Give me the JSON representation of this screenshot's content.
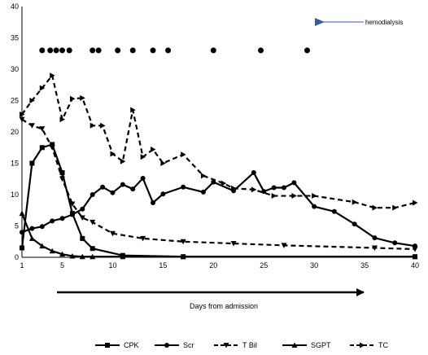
{
  "chart_data": {
    "type": "line",
    "xlabel": "Days from admission",
    "xlim": [
      1,
      40
    ],
    "ylim": [
      0,
      40
    ],
    "x_ticks": [
      1,
      5,
      10,
      15,
      20,
      25,
      30,
      35,
      40
    ],
    "y_ticks": [
      0,
      5,
      10,
      15,
      20,
      25,
      30,
      35,
      40
    ],
    "grid": false,
    "legend_position": "bottom",
    "hemodialysis": {
      "label": "hemodialysis",
      "y": 33,
      "days": [
        3,
        3.8,
        4.4,
        5,
        5.7,
        8,
        8.6,
        10.5,
        12,
        14,
        15.5,
        20,
        24.7,
        29.3
      ]
    },
    "series": [
      {
        "name": "CPK",
        "marker": "square",
        "style": "solid",
        "x": [
          1,
          2,
          3,
          4,
          5,
          6,
          7,
          8,
          11,
          17,
          40
        ],
        "y": [
          1.5,
          15,
          17.5,
          18,
          13.5,
          7,
          3,
          1.4,
          0.3,
          0.1,
          0.1
        ]
      },
      {
        "name": "Scr",
        "marker": "circle",
        "style": "solid",
        "x": [
          1,
          2,
          3,
          4,
          5,
          6,
          7,
          8,
          9,
          10,
          11,
          12,
          13,
          14,
          15,
          17,
          19,
          20,
          22,
          24,
          25,
          26,
          27,
          28,
          30,
          32,
          34,
          36,
          38,
          40
        ],
        "y": [
          4,
          4.6,
          4.9,
          5.8,
          6.2,
          6.8,
          7.7,
          10,
          11.2,
          10.3,
          11.6,
          10.9,
          12.6,
          8.7,
          10.1,
          11.2,
          10.4,
          12,
          10.6,
          13.5,
          10.5,
          11.1,
          11.1,
          11.9,
          8.1,
          7.3,
          5.3,
          3.1,
          2.3,
          1.8
        ]
      },
      {
        "name": "T Bil",
        "marker": "triangle-down",
        "style": "dashed",
        "x": [
          1,
          2,
          3,
          4,
          5,
          6,
          7,
          8,
          10,
          13,
          17,
          22,
          27,
          36,
          40
        ],
        "y": [
          22,
          21,
          20.5,
          17.5,
          12.5,
          8.5,
          6.3,
          5.6,
          3.8,
          3,
          2.5,
          2.2,
          1.9,
          1.5,
          1.3
        ]
      },
      {
        "name": "SGPT",
        "marker": "triangle-up",
        "style": "solid",
        "x": [
          1,
          2,
          3,
          4,
          5,
          6,
          7,
          8,
          11,
          17,
          40
        ],
        "y": [
          7,
          3,
          1.8,
          1,
          0.5,
          0.2,
          0.1,
          0.1,
          0.1,
          0.1,
          0.1
        ]
      },
      {
        "name": "TC",
        "marker": "triangle-right",
        "style": "dashed",
        "x": [
          1,
          2,
          3,
          4,
          5,
          6,
          7,
          8,
          9,
          10,
          11,
          12,
          13,
          14,
          15,
          17,
          19,
          21,
          22,
          24,
          26,
          28,
          30,
          34,
          36,
          38,
          40
        ],
        "y": [
          22.8,
          25,
          27,
          29,
          22,
          25.3,
          25.4,
          21,
          21,
          16.5,
          15.3,
          23.5,
          16,
          17.2,
          15,
          16.4,
          13,
          11.8,
          11,
          10.8,
          9.8,
          9.8,
          9.8,
          8.8,
          7.9,
          7.9,
          8.7
        ]
      }
    ]
  }
}
